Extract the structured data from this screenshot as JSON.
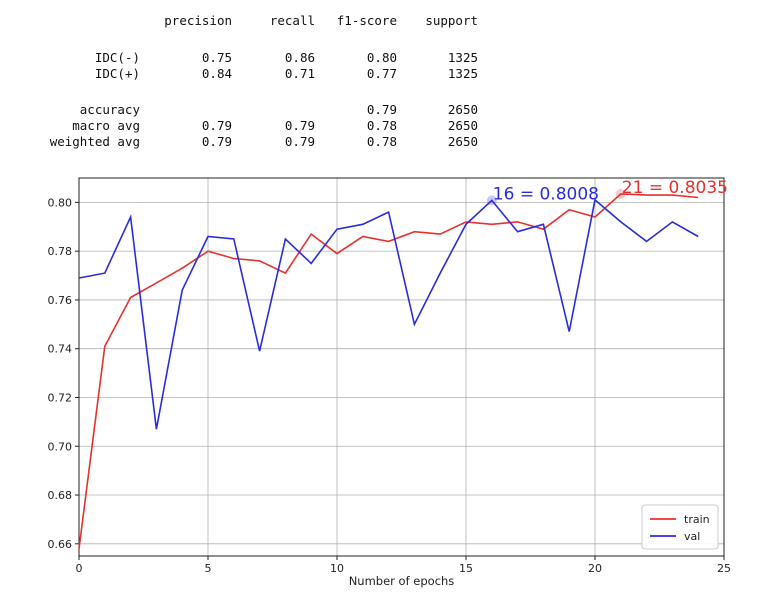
{
  "report": {
    "headers": [
      "precision",
      "recall",
      "f1-score",
      "support"
    ],
    "rows": [
      {
        "label": "IDC(-)",
        "precision": "0.75",
        "recall": "0.86",
        "f1": "0.80",
        "support": "1325"
      },
      {
        "label": "IDC(+)",
        "precision": "0.84",
        "recall": "0.71",
        "f1": "0.77",
        "support": "1325"
      },
      {
        "label": "accuracy",
        "precision": "",
        "recall": "",
        "f1": "0.79",
        "support": "2650"
      },
      {
        "label": "macro avg",
        "precision": "0.79",
        "recall": "0.79",
        "f1": "0.78",
        "support": "2650"
      },
      {
        "label": "weighted avg",
        "precision": "0.79",
        "recall": "0.79",
        "f1": "0.78",
        "support": "2650"
      }
    ]
  },
  "chart_data": {
    "type": "line",
    "title": "",
    "xlabel": "Number of epochs",
    "ylabel": "",
    "xlim": [
      0,
      25
    ],
    "ylim": [
      0.655,
      0.81
    ],
    "xticks": [
      0,
      5,
      10,
      15,
      20,
      25
    ],
    "yticks": [
      0.66,
      0.68,
      0.7,
      0.72,
      0.74,
      0.76,
      0.78,
      0.8
    ],
    "grid": true,
    "legend_position": "lower-right",
    "series": [
      {
        "name": "train",
        "color": "#e8302e",
        "x": [
          0,
          1,
          2,
          3,
          4,
          5,
          6,
          7,
          8,
          9,
          10,
          11,
          12,
          13,
          14,
          15,
          16,
          17,
          18,
          19,
          20,
          21,
          22,
          23,
          24
        ],
        "y": [
          0.658,
          0.741,
          0.761,
          0.767,
          0.773,
          0.78,
          0.777,
          0.776,
          0.771,
          0.787,
          0.779,
          0.786,
          0.784,
          0.788,
          0.787,
          0.792,
          0.791,
          0.792,
          0.789,
          0.797,
          0.794,
          0.8035,
          0.803,
          0.803,
          0.802
        ]
      },
      {
        "name": "val",
        "color": "#2b2bde",
        "x": [
          0,
          1,
          2,
          3,
          4,
          5,
          6,
          7,
          8,
          9,
          10,
          11,
          12,
          13,
          14,
          15,
          16,
          17,
          18,
          19,
          20,
          21,
          22,
          23,
          24
        ],
        "y": [
          0.769,
          0.771,
          0.794,
          0.707,
          0.764,
          0.786,
          0.785,
          0.739,
          0.785,
          0.775,
          0.789,
          0.791,
          0.796,
          0.75,
          0.771,
          0.791,
          0.8008,
          0.788,
          0.791,
          0.747,
          0.801,
          0.792,
          0.784,
          0.792,
          0.786
        ]
      }
    ],
    "annotations": [
      {
        "text": "16 = 0.8008",
        "x": 16,
        "y": 0.8008,
        "color": "#2b2bde"
      },
      {
        "text": "21 = 0.8035",
        "x": 21,
        "y": 0.8035,
        "color": "#e8302e"
      }
    ]
  }
}
